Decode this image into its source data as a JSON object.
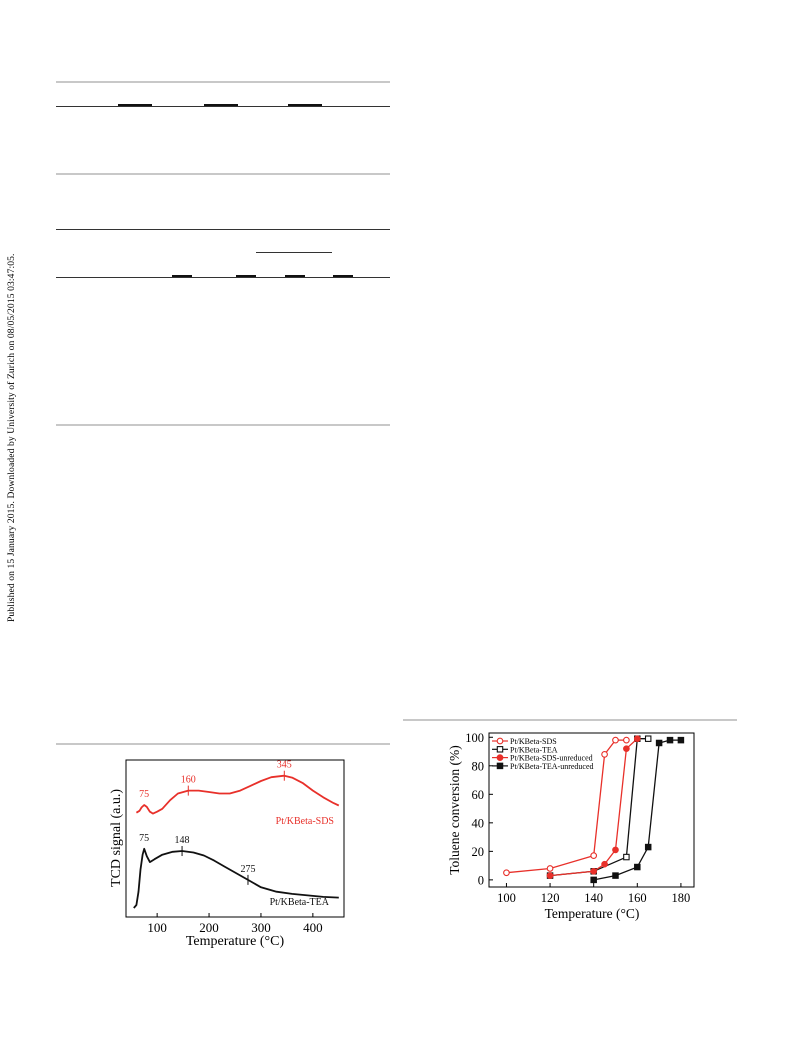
{
  "side_note": "Published on 15 January 2015. Downloaded by University of Zurich on 08/05/2015 03:47:05.",
  "colors": {
    "red": "#e8302a",
    "black": "#111111",
    "rule_gray": "#c8c8c8"
  },
  "tpd_chart": {
    "chart_data": {
      "type": "line",
      "xlabel": "Temperature (°C)",
      "ylabel": "TCD signal (a.u.)",
      "xlim": [
        40,
        460
      ],
      "x_ticks": [
        "100",
        "200",
        "300",
        "400"
      ],
      "series": [
        {
          "name": "Pt/KBeta-SDS",
          "color": "#e8302a",
          "x": [
            60,
            66,
            70,
            75,
            80,
            86,
            92,
            100,
            110,
            125,
            140,
            160,
            180,
            200,
            220,
            240,
            260,
            280,
            300,
            320,
            345,
            360,
            380,
            400,
            420,
            440,
            450
          ],
          "y": [
            0.84,
            0.88,
            0.95,
            1.0,
            0.96,
            0.86,
            0.82,
            0.86,
            0.92,
            1.1,
            1.24,
            1.3,
            1.3,
            1.27,
            1.24,
            1.24,
            1.3,
            1.4,
            1.5,
            1.58,
            1.61,
            1.57,
            1.46,
            1.3,
            1.16,
            1.04,
            0.99
          ]
        },
        {
          "name": "Pt/KBeta-TEA",
          "color": "#111111",
          "x": [
            55,
            60,
            64,
            68,
            72,
            75,
            80,
            86,
            95,
            110,
            130,
            148,
            170,
            190,
            210,
            230,
            250,
            275,
            300,
            330,
            360,
            390,
            420,
            450
          ],
          "y": [
            0.0,
            0.04,
            0.22,
            0.52,
            0.72,
            0.8,
            0.7,
            0.62,
            0.66,
            0.72,
            0.76,
            0.77,
            0.75,
            0.71,
            0.64,
            0.56,
            0.48,
            0.38,
            0.28,
            0.22,
            0.19,
            0.17,
            0.15,
            0.14
          ]
        }
      ],
      "peak_labels": [
        {
          "series": "Pt/KBeta-SDS",
          "x": 75,
          "text": "75"
        },
        {
          "series": "Pt/KBeta-SDS",
          "x": 160,
          "text": "160"
        },
        {
          "series": "Pt/KBeta-SDS",
          "x": 345,
          "text": "345"
        },
        {
          "series": "Pt/KBeta-TEA",
          "x": 75,
          "text": "75"
        },
        {
          "series": "Pt/KBeta-TEA",
          "x": 148,
          "text": "148"
        },
        {
          "series": "Pt/KBeta-TEA",
          "x": 275,
          "text": "275"
        }
      ],
      "series_labels": [
        "Pt/KBeta-SDS",
        "Pt/KBeta-TEA"
      ]
    }
  },
  "conv_chart": {
    "chart_data": {
      "type": "line",
      "xlabel": "Temperature (°C)",
      "ylabel": "Toluene conversion (%)",
      "xlim": [
        92,
        186
      ],
      "ylim": [
        -5,
        103
      ],
      "x_ticks": [
        100,
        120,
        140,
        160,
        180
      ],
      "y_ticks": [
        0,
        20,
        40,
        60,
        80,
        100
      ],
      "legend": "top-left",
      "series": [
        {
          "name": "Pt/KBeta-SDS",
          "color": "#e8302a",
          "marker": "open-circle",
          "x": [
            100,
            120,
            140,
            145,
            150,
            155
          ],
          "y": [
            5,
            8,
            17,
            88,
            98,
            98
          ]
        },
        {
          "name": "Pt/KBeta-TEA",
          "color": "#111111",
          "marker": "open-square",
          "x": [
            120,
            140,
            155,
            160,
            165
          ],
          "y": [
            3,
            6,
            16,
            99,
            99
          ]
        },
        {
          "name": "Pt/KBeta-SDS-unreduced",
          "color": "#e8302a",
          "marker": "filled-circle",
          "x": [
            120,
            140,
            145,
            150,
            155,
            160
          ],
          "y": [
            3,
            6,
            11,
            21,
            92,
            99
          ]
        },
        {
          "name": "Pt/KBeta-TEA-unreduced",
          "color": "#111111",
          "marker": "filled-square",
          "x": [
            140,
            150,
            160,
            165,
            170,
            175,
            180
          ],
          "y": [
            0,
            3,
            9,
            23,
            96,
            98,
            98
          ]
        }
      ]
    }
  }
}
